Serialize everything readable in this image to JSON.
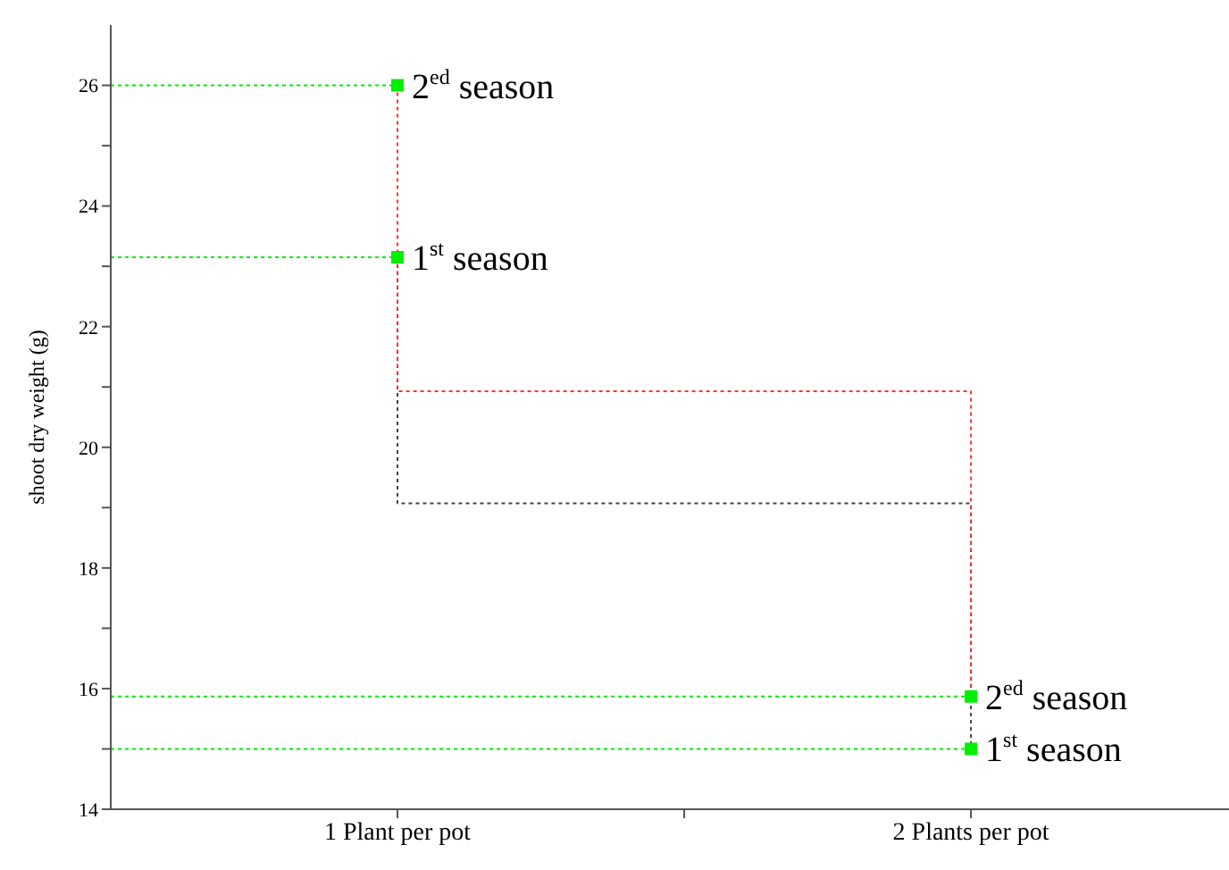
{
  "chart_data": {
    "type": "scatter",
    "ylabel": "shoot dry weight (g)",
    "x": [
      1,
      2
    ],
    "xlim": [
      0.5,
      2.45
    ],
    "xticks": [
      {
        "value": 1,
        "label": "1 Plant per pot"
      },
      {
        "value": 1.5,
        "label": null
      },
      {
        "value": 2,
        "label": "2 Plants per pot"
      }
    ],
    "ylim": [
      14,
      27
    ],
    "yticks": [
      14,
      {
        "value": 15,
        "label": null
      },
      16,
      {
        "value": 17,
        "label": null
      },
      18,
      {
        "value": 19,
        "label": null
      },
      20,
      {
        "value": 21,
        "label": null
      },
      22,
      {
        "value": 23,
        "label": null
      },
      24,
      {
        "value": 25,
        "label": null
      },
      26
    ],
    "series": [
      {
        "type": "line",
        "x": [
          0.5,
          1
        ],
        "values": [
          26,
          26
        ],
        "color": "#00ee00",
        "line_style": "dotted",
        "marker": "none"
      },
      {
        "type": "line",
        "x": [
          0.5,
          1
        ],
        "values": [
          23.15,
          23.15
        ],
        "color": "#00ee00",
        "line_style": "dotted",
        "marker": "none"
      },
      {
        "type": "line",
        "x": [
          0.5,
          2
        ],
        "values": [
          15.87,
          15.87
        ],
        "color": "#00ee00",
        "line_style": "dotted",
        "marker": "none"
      },
      {
        "type": "line",
        "x": [
          0.5,
          2
        ],
        "values": [
          15,
          15
        ],
        "color": "#00ee00",
        "line_style": "dotted",
        "marker": "none"
      },
      {
        "type": "line",
        "x": [
          1,
          1,
          2,
          2
        ],
        "values": [
          23.15,
          19.07,
          19.07,
          15
        ],
        "color": "#444444",
        "line_style": "dotted",
        "marker": "none"
      },
      {
        "type": "line",
        "x": [
          1,
          1,
          2,
          2
        ],
        "values": [
          26,
          20.93,
          20.93,
          15.87
        ],
        "color": "#ff3333",
        "line_style": "dotted",
        "marker": "none"
      },
      {
        "name": "2$^{ed}$ season",
        "values": [
          26,
          15.87
        ],
        "color": "#00ee00",
        "marker": "square"
      },
      {
        "name": "1$^{st}$ season",
        "values": [
          23.15,
          15
        ],
        "color": "#00ee00",
        "marker": "square"
      }
    ]
  }
}
